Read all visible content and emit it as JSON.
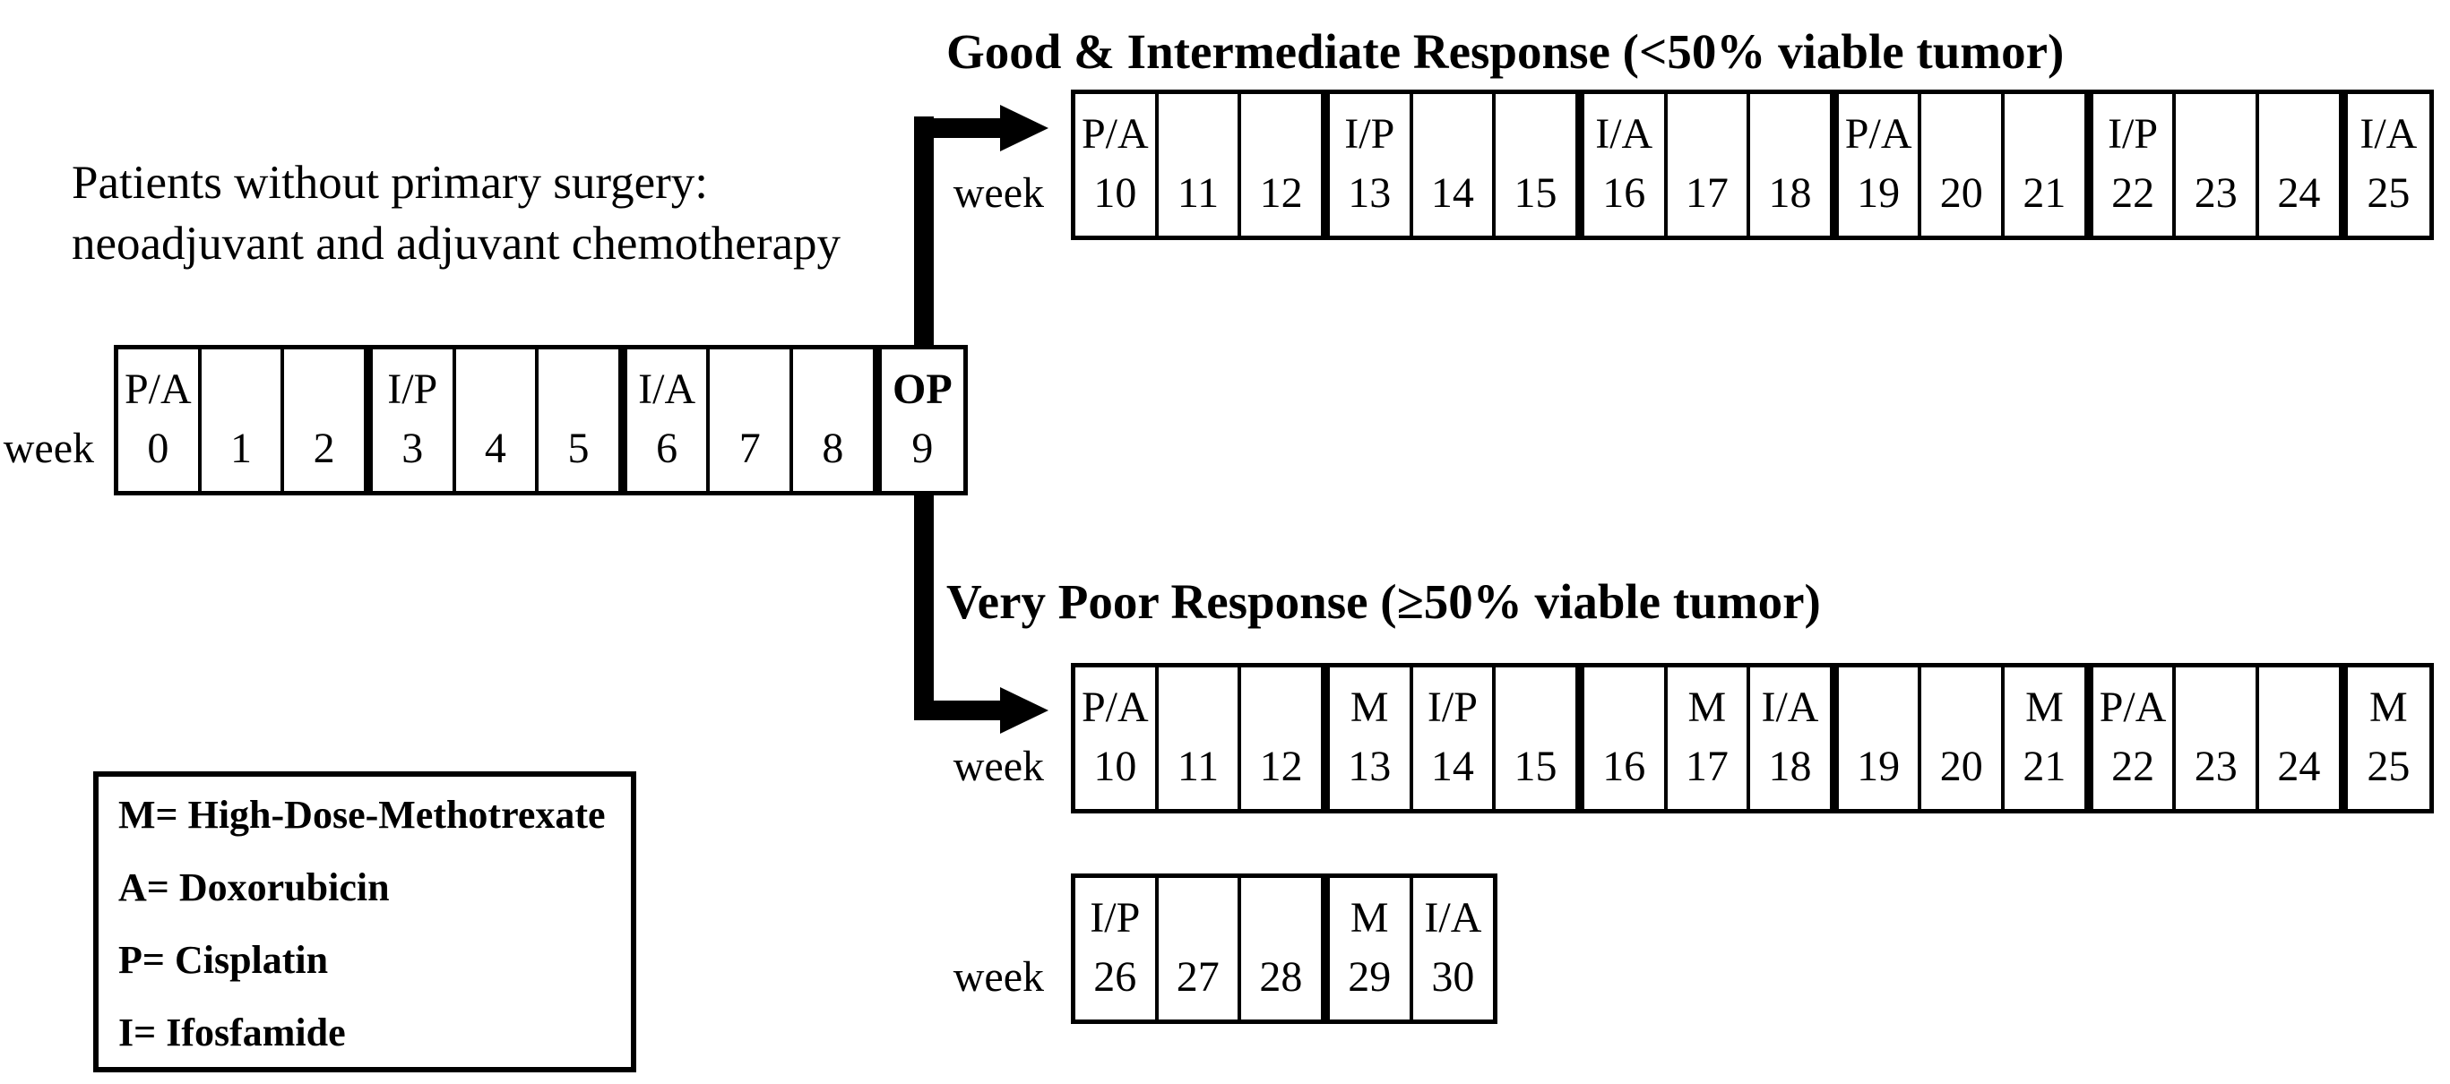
{
  "figure": {
    "intro": {
      "line1": "Patients without primary surgery:",
      "line2": "neoadjuvant and adjuvant chemotherapy"
    },
    "labels": {
      "week": "week"
    },
    "branches": {
      "good": {
        "title": "Good & Intermediate Response (<50% viable tumor)"
      },
      "poor": {
        "title": "Very Poor Response (≥50% viable tumor)"
      }
    },
    "legend": {
      "items": [
        "M= High-Dose-Methotrexate",
        "A= Doxorubicin",
        "P= Cisplatin",
        "I= Ifosfamide"
      ]
    },
    "rows": {
      "baseline": {
        "blocks": [
          [
            {
              "d": "P/A",
              "w": "0"
            },
            {
              "w": "1"
            },
            {
              "w": "2"
            }
          ],
          [
            {
              "d": "I/P",
              "w": "3"
            },
            {
              "w": "4"
            },
            {
              "w": "5"
            }
          ],
          [
            {
              "d": "I/A",
              "w": "6"
            },
            {
              "w": "7"
            },
            {
              "w": "8"
            }
          ],
          [
            {
              "d": "OP",
              "w": "9",
              "bold": true
            }
          ]
        ]
      },
      "good": {
        "blocks": [
          [
            {
              "d": "P/A",
              "w": "10"
            },
            {
              "w": "11"
            },
            {
              "w": "12"
            }
          ],
          [
            {
              "d": "I/P",
              "w": "13"
            },
            {
              "w": "14"
            },
            {
              "w": "15"
            }
          ],
          [
            {
              "d": "I/A",
              "w": "16"
            },
            {
              "w": "17"
            },
            {
              "w": "18"
            }
          ],
          [
            {
              "d": "P/A",
              "w": "19"
            },
            {
              "w": "20"
            },
            {
              "w": "21"
            }
          ],
          [
            {
              "d": "I/P",
              "w": "22"
            },
            {
              "w": "23"
            },
            {
              "w": "24"
            }
          ],
          [
            {
              "d": "I/A",
              "w": "25"
            }
          ]
        ]
      },
      "poor": {
        "blocks": [
          [
            {
              "d": "P/A",
              "w": "10"
            },
            {
              "w": "11"
            },
            {
              "w": "12"
            }
          ],
          [
            {
              "d": "M",
              "w": "13"
            },
            {
              "d": "I/P",
              "w": "14"
            },
            {
              "w": "15"
            }
          ],
          [
            {
              "w": "16"
            },
            {
              "d": "M",
              "w": "17"
            },
            {
              "d": "I/A",
              "w": "18"
            }
          ],
          [
            {
              "w": "19"
            },
            {
              "w": "20"
            },
            {
              "d": "M",
              "w": "21"
            }
          ],
          [
            {
              "d": "P/A",
              "w": "22"
            },
            {
              "w": "23"
            },
            {
              "w": "24"
            }
          ],
          [
            {
              "d": "M",
              "w": "25"
            }
          ]
        ]
      },
      "poor2": {
        "blocks": [
          [
            {
              "d": "I/P",
              "w": "26"
            },
            {
              "w": "27"
            },
            {
              "w": "28"
            }
          ],
          [
            {
              "d": "M",
              "w": "29"
            },
            {
              "d": "I/A",
              "w": "30"
            }
          ]
        ]
      }
    }
  }
}
